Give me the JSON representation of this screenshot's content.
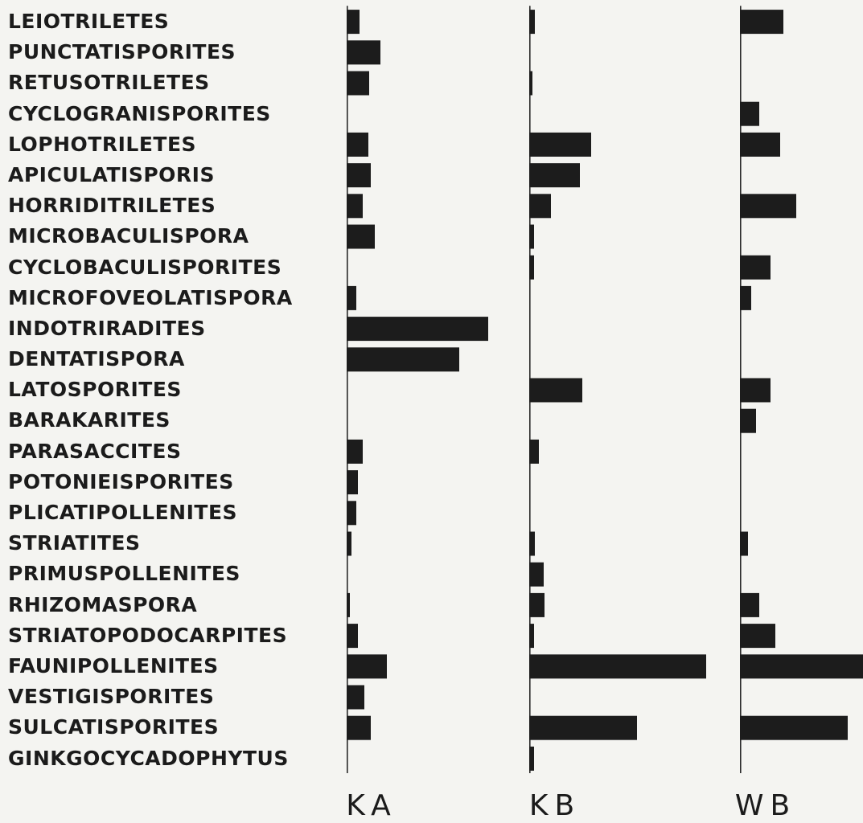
{
  "chart_data": {
    "type": "bar",
    "orientation": "horizontal",
    "categories": [
      "LEIOTRILETES",
      "PUNCTATISPORITES",
      "RETUSOTRILETES",
      "CYCLOGRANISPORITES",
      "LOPHOTRILETES",
      "APICULATISPORIS",
      "HORRIDITRILETES",
      "MICROBACULISPORA",
      "CYCLOBACULISPORITES",
      "MICROFOVEOLATISPORA",
      "INDOTRIRADITES",
      "DENTATISPORA",
      "LATOSPORITES",
      "BARAKARITES",
      "PARASACCITES",
      "POTONIEISPORITES",
      "PLICATIPOLLENITES",
      "STRIATITES",
      "PRIMUSPOLLENITES",
      "RHIZOMASPORA",
      "STRIATOPODOCARPITES",
      "FAUNIPOLLENITES",
      "VESTIGISPORITES",
      "SULCATISPORITES",
      "GINKGOCYCADOPHYTUS"
    ],
    "series": [
      {
        "name": "KA",
        "values": [
          16,
          42,
          28,
          0,
          27,
          30,
          20,
          35,
          0,
          12,
          176,
          140,
          0,
          0,
          20,
          14,
          12,
          6,
          0,
          4,
          14,
          50,
          22,
          30,
          0
        ]
      },
      {
        "name": "KB",
        "values": [
          7,
          0,
          4,
          0,
          77,
          63,
          27,
          6,
          6,
          0,
          0,
          0,
          66,
          0,
          12,
          0,
          0,
          7,
          18,
          19,
          6,
          220,
          0,
          134,
          6
        ]
      },
      {
        "name": "WB",
        "values": [
          54,
          0,
          0,
          24,
          50,
          0,
          70,
          0,
          38,
          14,
          0,
          0,
          38,
          20,
          0,
          0,
          0,
          10,
          0,
          24,
          44,
          160,
          0,
          134,
          0
        ]
      }
    ],
    "colors": {
      "bar": "#1c1c1c",
      "axis": "#2a2a2a",
      "background": "#f4f4f1"
    },
    "grid": false,
    "legend": "none"
  }
}
